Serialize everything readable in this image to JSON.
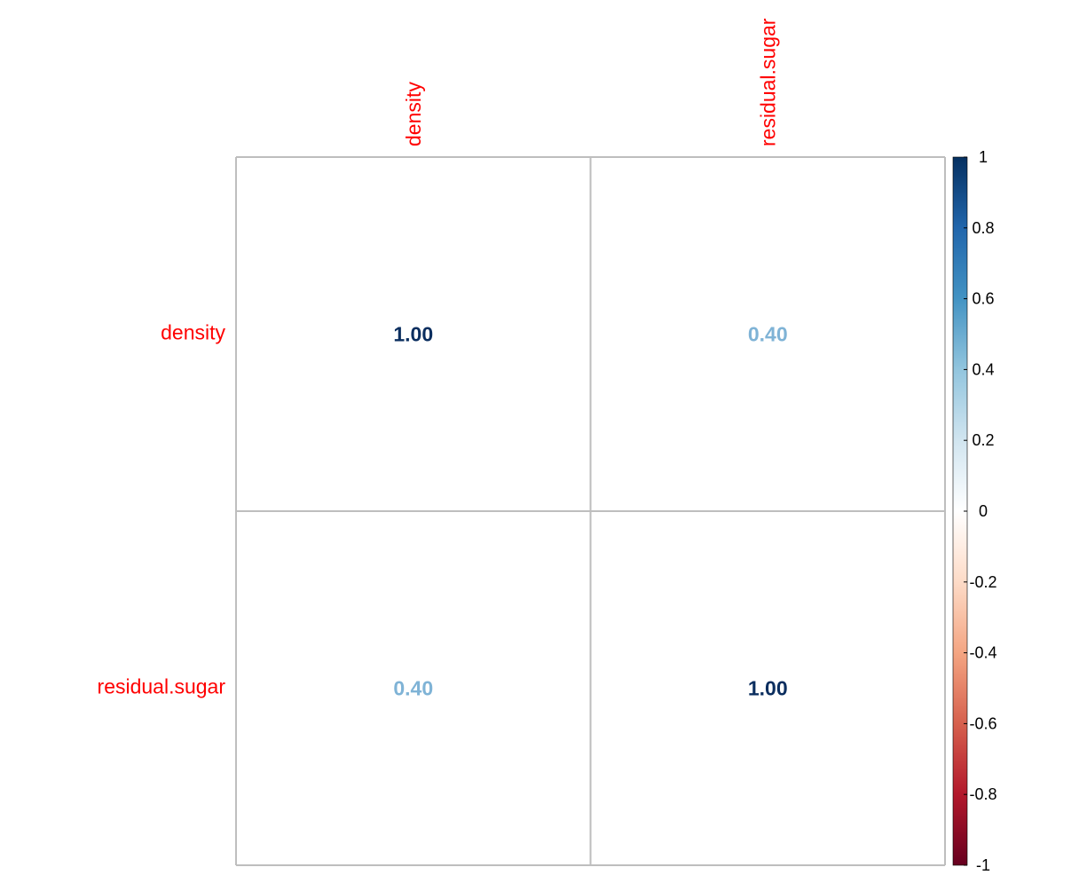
{
  "chart_data": {
    "type": "heatmap",
    "title": "",
    "xlabel": "",
    "ylabel": "",
    "variables": [
      "density",
      "residual.sugar"
    ],
    "matrix": [
      [
        1.0,
        0.4
      ],
      [
        0.4,
        1.0
      ]
    ],
    "cell_labels": [
      [
        "1.00",
        "0.40"
      ],
      [
        "0.40",
        "1.00"
      ]
    ],
    "colorbar": {
      "range": [
        -1,
        1
      ],
      "ticks": [
        1,
        0.8,
        0.6,
        0.4,
        0.2,
        0,
        -0.2,
        -0.4,
        -0.6,
        -0.8,
        -1
      ],
      "tick_labels": [
        "1",
        "0.8",
        "0.6",
        "0.4",
        "0.2",
        "0",
        "-0.2",
        "-0.4",
        "-0.6",
        "-0.8",
        "-1"
      ],
      "placement": "right"
    },
    "grid": true,
    "colors": {
      "label_color": "#ff0000",
      "grid_color": "#bebebe",
      "strong_positive": "#0b2e5f",
      "medium_positive": "#7fb3d6"
    }
  }
}
